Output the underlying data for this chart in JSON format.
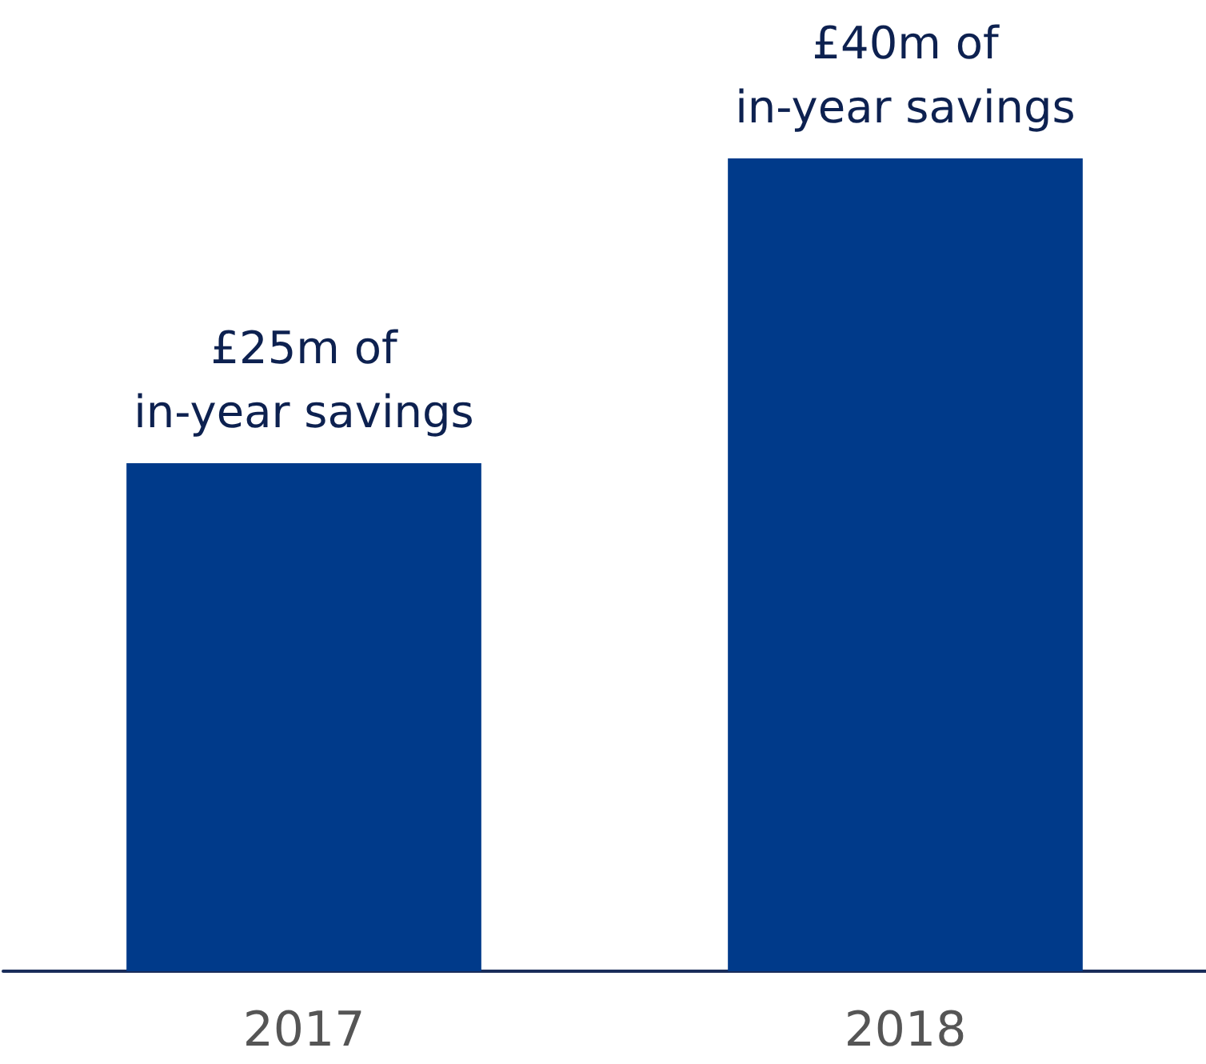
{
  "chart_data": {
    "type": "bar",
    "categories": [
      "2017",
      "2018"
    ],
    "values": [
      25,
      40
    ],
    "value_labels": [
      "£25m of\nin-year savings",
      "£40m of\nin-year savings"
    ],
    "color": "#003a8a"
  }
}
